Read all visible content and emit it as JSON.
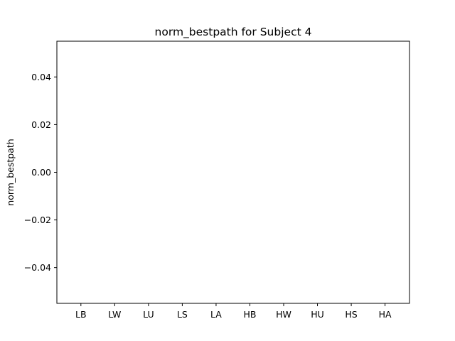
{
  "chart_data": {
    "type": "bar",
    "title": "norm_bestpath for Subject 4",
    "xlabel": "",
    "ylabel": "norm_bestpath",
    "categories": [
      "LB",
      "LW",
      "LU",
      "LS",
      "LA",
      "HB",
      "HW",
      "HU",
      "HS",
      "HA"
    ],
    "values": [
      0,
      0,
      0,
      0,
      0,
      0,
      0,
      0,
      0,
      0
    ],
    "ylim": [
      -0.055,
      0.055
    ],
    "yticks": [
      -0.04,
      -0.02,
      0.0,
      0.02,
      0.04
    ],
    "ytick_labels": [
      "−0.04",
      "−0.02",
      "0.00",
      "0.02",
      "0.04"
    ],
    "grid": false,
    "legend": "none",
    "bar_color": "#1f77b4"
  }
}
